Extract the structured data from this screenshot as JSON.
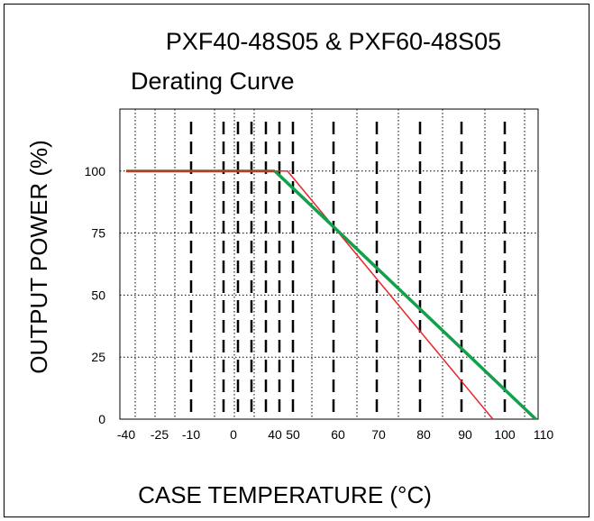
{
  "chart_data": {
    "type": "line",
    "title": [
      "PXF40-48S05 & PXF60-48S05",
      "Derating Curve"
    ],
    "xlabel": "CASE TEMPERATURE (°C)",
    "ylabel": "OUTPUT POWER (%)",
    "x_tick_labels": [
      "-40",
      "-25",
      "-10",
      "0",
      "40",
      "50",
      "60",
      "70",
      "80",
      "90",
      "100",
      "110"
    ],
    "y_ticks": [
      0,
      25,
      50,
      75,
      100
    ],
    "ylim": [
      0,
      125
    ],
    "grid": true,
    "series": [
      {
        "color": "#7a5a2e",
        "x": [
          "-40",
          "40"
        ],
        "y": [
          100,
          100
        ]
      },
      {
        "color": "#e8242b",
        "x": [
          "-40",
          "47",
          "97"
        ],
        "y": [
          100,
          100,
          0
        ]
      },
      {
        "color": "#12a04a",
        "x": [
          "40",
          "108"
        ],
        "y": [
          100,
          0
        ]
      }
    ]
  }
}
